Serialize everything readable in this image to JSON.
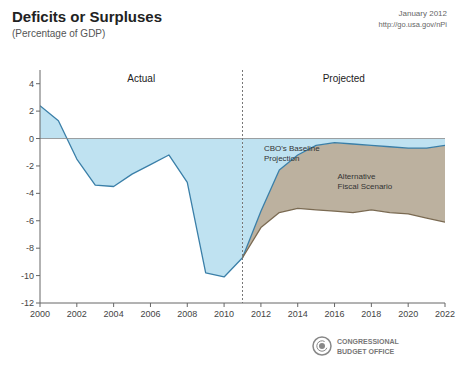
{
  "chart_data": {
    "type": "area",
    "title": "Deficits or Surpluses",
    "subtitle": "(Percentage of GDP)",
    "annotations": [
      "Projected",
      "January 2012",
      "http://go.usa.gov/nPi",
      "CONGRESSIONAL",
      "BUDGET OFFICE"
    ],
    "x": [
      2000,
      2001,
      2002,
      2003,
      2004,
      2005,
      2006,
      2007,
      2008,
      2009,
      2010,
      2011,
      2012,
      2013,
      2014,
      2015,
      2016,
      2017,
      2018,
      2019,
      2020,
      2021,
      2022
    ],
    "series": [
      {
        "name": "Actual",
        "type": "area",
        "color": "#b8dff0",
        "values": [
          2.4,
          1.3,
          -1.5,
          -3.4,
          -3.5,
          -2.6,
          -1.9,
          -1.2,
          -3.2,
          -9.8,
          -10.1,
          -8.7,
          null,
          null,
          null,
          null,
          null,
          null,
          null,
          null,
          null,
          null,
          null
        ]
      },
      {
        "name": "CBO's Baseline\nProjection",
        "type": "area",
        "color": "#b8dff0",
        "values": [
          null,
          null,
          null,
          null,
          null,
          null,
          null,
          null,
          null,
          null,
          null,
          -8.7,
          -5.3,
          -2.3,
          -1.2,
          -0.5,
          -0.3,
          -0.4,
          -0.5,
          -0.6,
          -0.7,
          -0.7,
          -0.5
        ]
      },
      {
        "name": "Alternative\nFiscal Scenario",
        "type": "band",
        "color": "#b5a895",
        "values": [
          null,
          null,
          null,
          null,
          null,
          null,
          null,
          null,
          null,
          null,
          null,
          -8.7,
          -6.5,
          -5.4,
          -5.1,
          -5.2,
          -5.3,
          -5.4,
          -5.2,
          -5.4,
          -5.5,
          -5.8,
          -6.1
        ]
      }
    ],
    "divider_x": 2011,
    "xlim": [
      2000,
      2022
    ],
    "ylim": [
      -12,
      5
    ],
    "xticks": [
      2000,
      2002,
      2004,
      2006,
      2008,
      2010,
      2012,
      2014,
      2016,
      2018,
      2020,
      2022
    ],
    "yticks": [
      -12,
      -10,
      -8,
      -6,
      -4,
      -2,
      0,
      2,
      4
    ],
    "grid": false
  }
}
